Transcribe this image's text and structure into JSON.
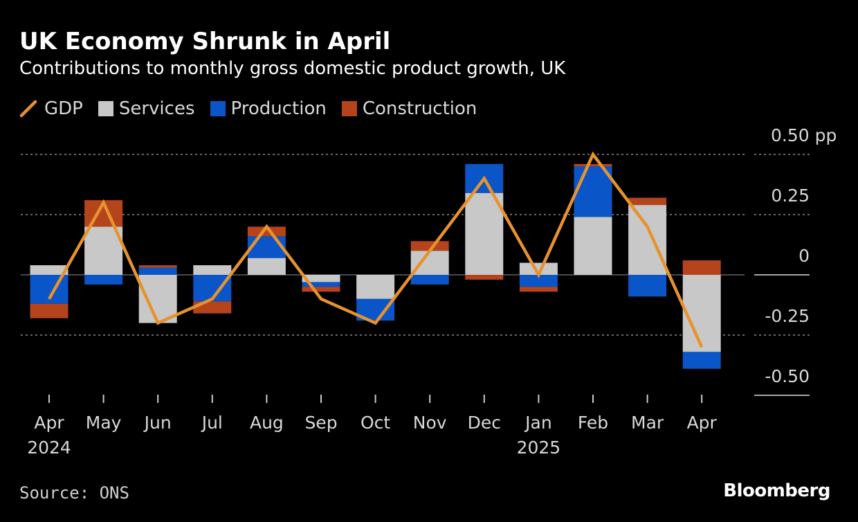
{
  "title": "UK Economy Shrunk in April",
  "subtitle": "Contributions to monthly gross domestic product growth, UK",
  "legend": {
    "gdp": "GDP",
    "services": "Services",
    "production": "Production",
    "construction": "Construction"
  },
  "colors": {
    "gdp": "#E8922E",
    "services": "#C8C8C8",
    "production": "#0A55C7",
    "construction": "#B5441D",
    "grid": "#8a8a8a",
    "axis_text": "#d9d9d9"
  },
  "source": "Source: ONS",
  "brand": "Bloomberg",
  "chart_data": {
    "type": "bar",
    "stacked": true,
    "categories": [
      "Apr",
      "May",
      "Jun",
      "Jul",
      "Aug",
      "Sep",
      "Oct",
      "Nov",
      "Dec",
      "Jan",
      "Feb",
      "Mar",
      "Apr"
    ],
    "year_labels": [
      {
        "index": 0,
        "label": "2024"
      },
      {
        "index": 9,
        "label": "2025"
      }
    ],
    "series": [
      {
        "name": "Services",
        "key": "services",
        "values": [
          0.04,
          0.2,
          -0.2,
          0.04,
          0.07,
          -0.03,
          -0.1,
          0.1,
          0.34,
          0.05,
          0.24,
          0.29,
          -0.32
        ]
      },
      {
        "name": "Production",
        "key": "production",
        "values": [
          -0.12,
          -0.04,
          0.03,
          -0.11,
          0.09,
          -0.02,
          -0.09,
          -0.04,
          0.12,
          -0.05,
          0.21,
          -0.09,
          -0.07
        ]
      },
      {
        "name": "Construction",
        "key": "construction",
        "values": [
          -0.06,
          0.11,
          0.01,
          -0.05,
          0.04,
          -0.02,
          0.0,
          0.04,
          -0.02,
          -0.02,
          0.01,
          0.03,
          0.06
        ]
      }
    ],
    "line": {
      "name": "GDP",
      "key": "gdp",
      "values": [
        -0.1,
        0.3,
        -0.2,
        -0.1,
        0.2,
        -0.1,
        -0.2,
        0.1,
        0.4,
        0.0,
        0.5,
        0.2,
        -0.3
      ]
    },
    "ylim": [
      -0.5,
      0.5
    ],
    "yticks": [
      {
        "value": 0.5,
        "label": "0.50 pp"
      },
      {
        "value": 0.25,
        "label": "0.25"
      },
      {
        "value": 0,
        "label": "0"
      },
      {
        "value": -0.25,
        "label": "-0.25"
      },
      {
        "value": -0.5,
        "label": "-0.50"
      }
    ],
    "ylabel": "pp",
    "xlabel": ""
  }
}
